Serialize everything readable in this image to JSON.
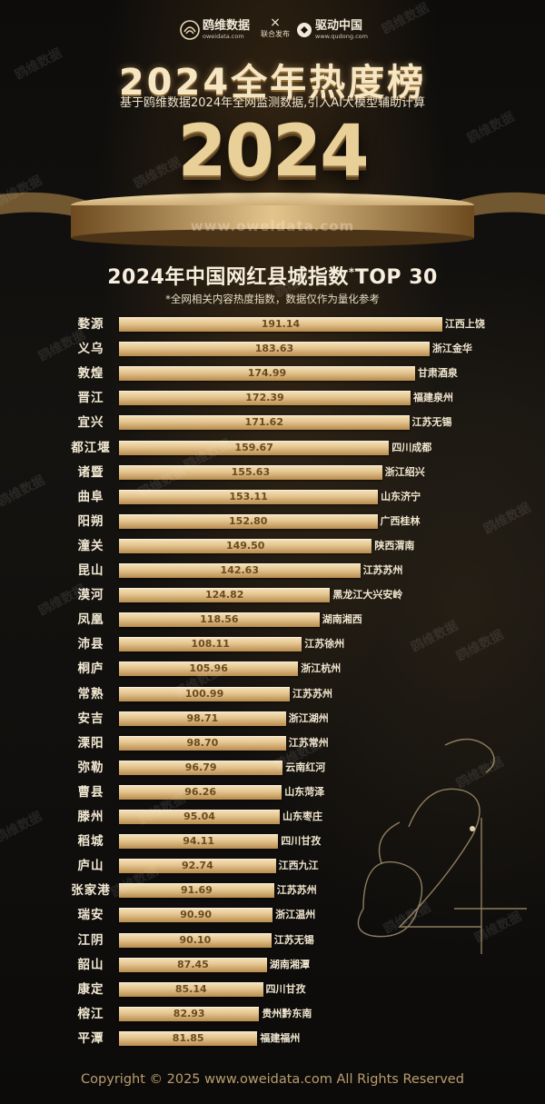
{
  "header": {
    "brand_left": "鸥维数据",
    "brand_left_url": "oweidata.com",
    "cross": "×",
    "joint": "联合发布",
    "brand_right": "驱动中国",
    "brand_right_url": "www.qudong.com",
    "title": "2024全年热度榜",
    "subtitle": "基于鸥维数据2024年全网监测数据,引入AI大模型辅助计算",
    "year": "2024",
    "site": "www.oweidata.com"
  },
  "chart_title": {
    "main": "2024年中国网红县城指数",
    "star": "*",
    "tail": "TOP 30",
    "note": "*全网相关内容热度指数，数据仅作为量化参考"
  },
  "watermark": "鸥维数据",
  "copyright": "Copyright © 2025 www.oweidata.com All Rights Reserved",
  "chart_data": {
    "type": "bar",
    "orientation": "horizontal",
    "title": "2024年中国网红县城指数*TOP 30",
    "categories": [
      "婺源",
      "义乌",
      "敦煌",
      "晋江",
      "宜兴",
      "都江堰",
      "诸暨",
      "曲阜",
      "阳朔",
      "潼关",
      "昆山",
      "漠河",
      "凤凰",
      "沛县",
      "桐庐",
      "常熟",
      "安吉",
      "溧阳",
      "弥勒",
      "曹县",
      "滕州",
      "稻城",
      "庐山",
      "张家港",
      "瑞安",
      "江阴",
      "韶山",
      "康定",
      "榕江",
      "平潭"
    ],
    "regions": [
      "江西上饶",
      "浙江金华",
      "甘肃酒泉",
      "福建泉州",
      "江苏无锡",
      "四川成都",
      "浙江绍兴",
      "山东济宁",
      "广西桂林",
      "陕西渭南",
      "江苏苏州",
      "黑龙江大兴安岭",
      "湖南湘西",
      "江苏徐州",
      "浙江杭州",
      "江苏苏州",
      "浙江湖州",
      "江苏常州",
      "云南红河",
      "山东菏泽",
      "山东枣庄",
      "四川甘孜",
      "江西九江",
      "江苏苏州",
      "浙江温州",
      "江苏无锡",
      "湖南湘潭",
      "四川甘孜",
      "贵州黔东南",
      "福建福州"
    ],
    "value_labels": [
      "191.14",
      "183.63",
      "174.99",
      "172.39",
      "171.62",
      "159.67",
      "155.63",
      "153.11",
      "152.80",
      "149.50",
      "142.63",
      "124.82",
      "118.56",
      "108.11",
      "105.96",
      "100.99",
      "98.71",
      "98.70",
      "96.79",
      "96.26",
      "95.04",
      "94.11",
      "92.74",
      "91.69",
      "90.90",
      "90.10",
      "87.45",
      "85.14",
      "82.93",
      "81.85"
    ],
    "values": [
      191.14,
      183.63,
      174.99,
      172.39,
      171.62,
      159.67,
      155.63,
      153.11,
      152.8,
      149.5,
      142.63,
      124.82,
      118.56,
      108.11,
      105.96,
      100.99,
      98.71,
      98.7,
      96.79,
      96.26,
      95.04,
      94.11,
      92.74,
      91.69,
      90.9,
      90.1,
      87.45,
      85.14,
      82.93,
      81.85
    ],
    "colors": {
      "bar_light": "#f6e4bd",
      "bar_mid": "#e4c58f",
      "bar_dark": "#b98c4e",
      "value_text": "#6b4a20"
    }
  }
}
